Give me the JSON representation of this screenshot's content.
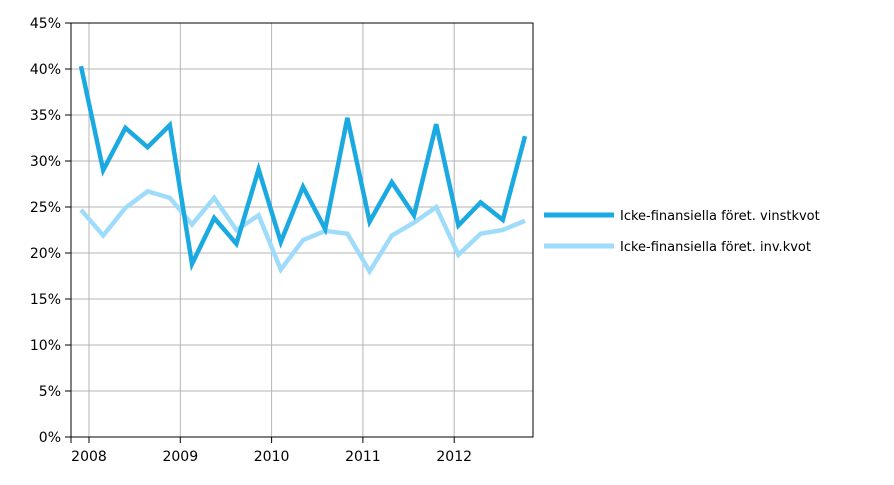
{
  "chart_data": {
    "type": "line",
    "title": "",
    "xlabel": "",
    "ylabel": "",
    "x": [
      "2007Q4",
      "2008Q1",
      "2008Q2",
      "2008Q3",
      "2008Q4",
      "2009Q1",
      "2009Q2",
      "2009Q3",
      "2009Q4",
      "2010Q1",
      "2010Q2",
      "2010Q3",
      "2010Q4",
      "2011Q1",
      "2011Q2",
      "2011Q3",
      "2011Q4",
      "2012Q1",
      "2012Q2",
      "2012Q3",
      "2012Q4"
    ],
    "x_ticks": [
      "2008",
      "2009",
      "2010",
      "2011",
      "2012"
    ],
    "y_ticks": [
      "0%",
      "5%",
      "10%",
      "15%",
      "20%",
      "25%",
      "30%",
      "35%",
      "40%",
      "45%"
    ],
    "ylim": [
      0,
      45
    ],
    "grid": true,
    "legend_position": "right",
    "series": [
      {
        "name": "Icke-finansiella föret. vinstkvot",
        "color": "#1ba9e1",
        "values": [
          40.3,
          29.0,
          33.6,
          31.5,
          33.9,
          18.8,
          23.8,
          21.0,
          29.1,
          21.2,
          27.2,
          22.6,
          34.7,
          23.4,
          27.7,
          24.1,
          34.0,
          23.0,
          25.5,
          23.6,
          32.7
        ]
      },
      {
        "name": "Icke-finansiella föret. inv.kvot",
        "color": "#9fdcfb",
        "values": [
          24.7,
          21.9,
          24.9,
          26.7,
          26.0,
          23.1,
          26.0,
          22.5,
          24.1,
          18.2,
          21.4,
          22.4,
          22.1,
          18.0,
          21.9,
          23.3,
          25.0,
          19.8,
          22.1,
          22.5,
          23.5
        ]
      }
    ]
  }
}
